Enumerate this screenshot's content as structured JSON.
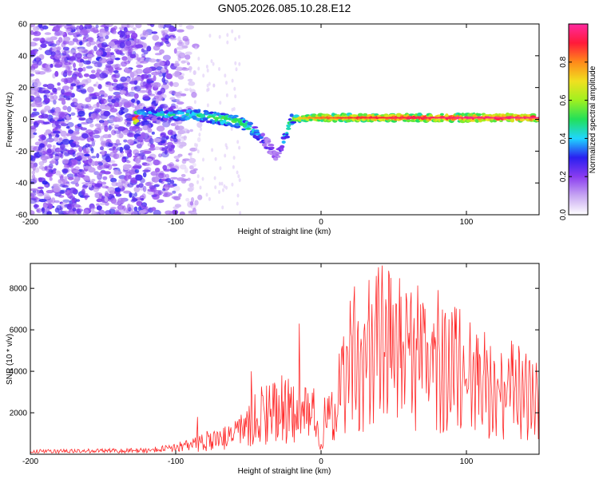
{
  "title": "GN05.2026.085.10.28.E12",
  "chart_data": [
    {
      "type": "heatmap",
      "name": "spectrogram",
      "xlabel": "Height of straight line (km)",
      "ylabel": "Frequency (Hz)",
      "xlim": [
        -200,
        150
      ],
      "ylim": [
        -60,
        60
      ],
      "xticks": [
        -200,
        -100,
        0,
        100
      ],
      "yticks": [
        -60,
        -40,
        -20,
        0,
        20,
        40,
        60
      ],
      "colorbar": {
        "label": "Normalized spectral amplitude",
        "range": [
          0,
          1
        ],
        "ticks": [
          0.0,
          0.2,
          0.4,
          0.6,
          0.8
        ],
        "colormap": [
          "#ffffff",
          "#c7a6f2",
          "#8a3cf0",
          "#2a1ff0",
          "#1fd6ff",
          "#22e05a",
          "#9ff020",
          "#f0e020",
          "#ff8a1a",
          "#ff1a3a",
          "#ff2aa0"
        ]
      },
      "ridge": [
        {
          "x": -125,
          "y": 4,
          "a": 0.35
        },
        {
          "x": -110,
          "y": 3,
          "a": 0.4
        },
        {
          "x": -95,
          "y": 3,
          "a": 0.45
        },
        {
          "x": -80,
          "y": 2,
          "a": 0.5
        },
        {
          "x": -65,
          "y": 0,
          "a": 0.55
        },
        {
          "x": -55,
          "y": -2,
          "a": 0.55
        },
        {
          "x": -48,
          "y": -6,
          "a": 0.5
        },
        {
          "x": -42,
          "y": -10,
          "a": 0.35
        },
        {
          "x": -35,
          "y": -18,
          "a": 0.2
        },
        {
          "x": -30,
          "y": -24,
          "a": 0.15
        },
        {
          "x": -20,
          "y": 0,
          "a": 0.6
        },
        {
          "x": -10,
          "y": 1,
          "a": 0.75
        },
        {
          "x": 0,
          "y": 1,
          "a": 0.8
        },
        {
          "x": 20,
          "y": 1,
          "a": 0.85
        },
        {
          "x": 50,
          "y": 1,
          "a": 0.9
        },
        {
          "x": 80,
          "y": 1,
          "a": 0.92
        },
        {
          "x": 110,
          "y": 1,
          "a": 0.95
        },
        {
          "x": 150,
          "y": 1,
          "a": 0.95
        }
      ]
    },
    {
      "type": "line",
      "name": "snr",
      "xlabel": "Height of straight line (km)",
      "ylabel": "SNR (10 * v/v)",
      "xlim": [
        -200,
        150
      ],
      "ylim": [
        0,
        9200
      ],
      "xticks": [
        -200,
        -100,
        0,
        100
      ],
      "yticks": [
        2000,
        4000,
        6000,
        8000
      ],
      "color": "#ff2a2a",
      "envelope": [
        {
          "x": -200,
          "y": 150
        },
        {
          "x": -120,
          "y": 200
        },
        {
          "x": -100,
          "y": 350
        },
        {
          "x": -80,
          "y": 900
        },
        {
          "x": -60,
          "y": 1200
        },
        {
          "x": -45,
          "y": 2400
        },
        {
          "x": -30,
          "y": 3200
        },
        {
          "x": -15,
          "y": 3000
        },
        {
          "x": -5,
          "y": 2600
        },
        {
          "x": 5,
          "y": 2200
        },
        {
          "x": 20,
          "y": 6500
        },
        {
          "x": 40,
          "y": 7800
        },
        {
          "x": 60,
          "y": 7400
        },
        {
          "x": 80,
          "y": 6400
        },
        {
          "x": 100,
          "y": 5600
        },
        {
          "x": 120,
          "y": 4800
        },
        {
          "x": 150,
          "y": 4000
        }
      ],
      "peaks": [
        {
          "x": -85,
          "y": 1800
        },
        {
          "x": -48,
          "y": 4000
        },
        {
          "x": -27,
          "y": 3800
        },
        {
          "x": -15,
          "y": 6300
        },
        {
          "x": 20,
          "y": 7400
        },
        {
          "x": 33,
          "y": 8400
        },
        {
          "x": 38,
          "y": 8600
        },
        {
          "x": 42,
          "y": 9100
        },
        {
          "x": 48,
          "y": 8500
        },
        {
          "x": 55,
          "y": 7600
        },
        {
          "x": 62,
          "y": 7800
        },
        {
          "x": 70,
          "y": 7300
        },
        {
          "x": 92,
          "y": 7100
        },
        {
          "x": 108,
          "y": 5600
        },
        {
          "x": 132,
          "y": 5300
        }
      ]
    }
  ]
}
